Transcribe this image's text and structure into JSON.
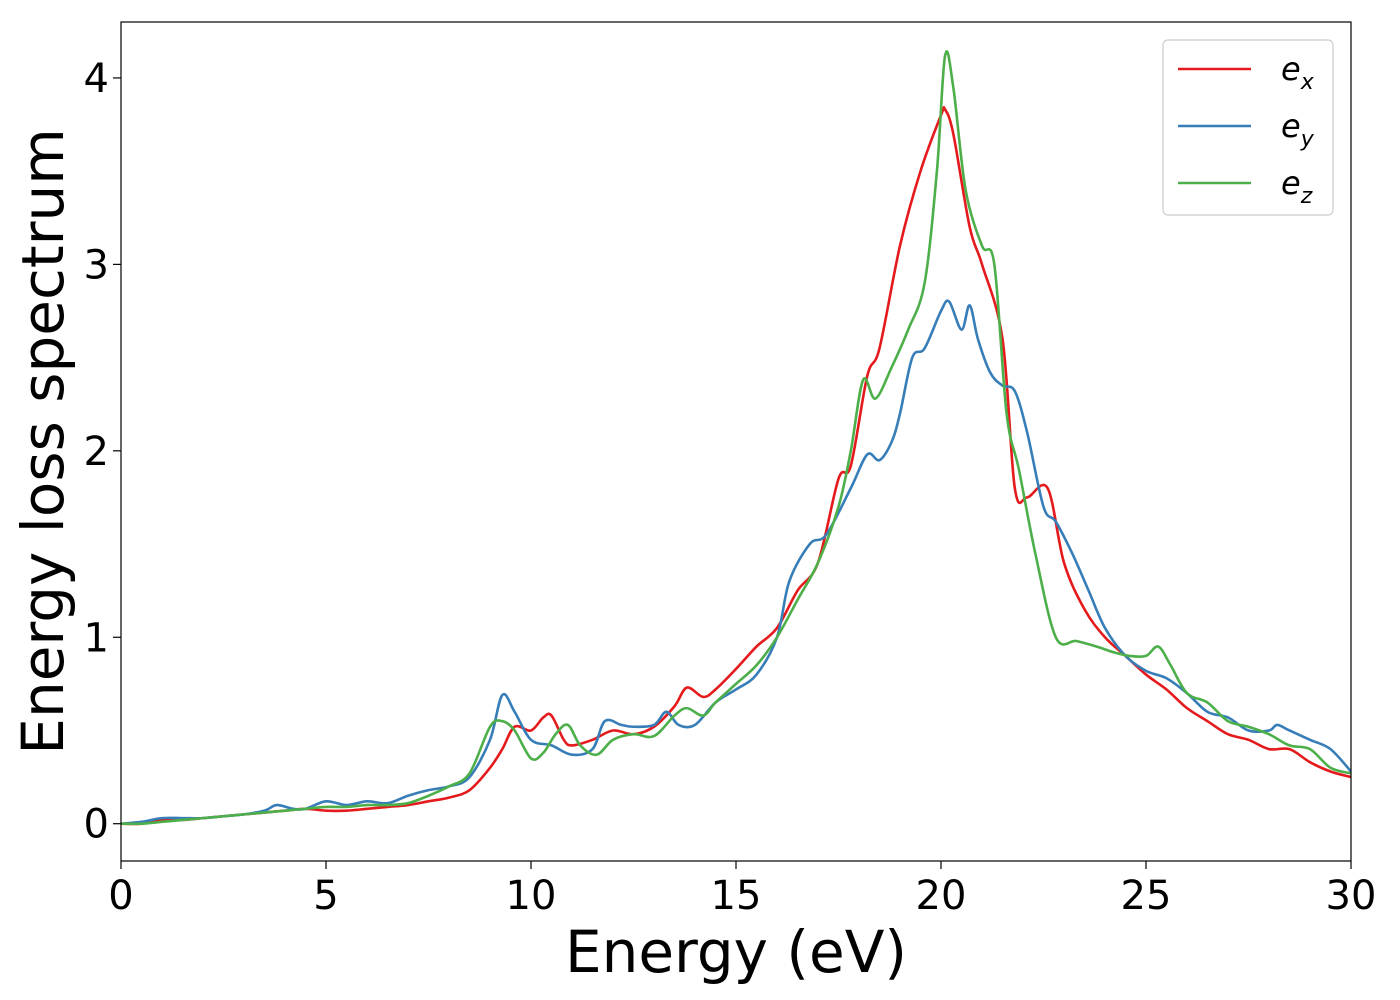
{
  "chart_data": {
    "type": "line",
    "title": "",
    "xlabel": "Energy (eV)",
    "ylabel": "Energy loss spectrum",
    "xlim": [
      0,
      30
    ],
    "ylim": [
      -0.2,
      4.3
    ],
    "xticks": [
      0,
      5,
      10,
      15,
      20,
      25,
      30
    ],
    "yticks": [
      0,
      1,
      2,
      3,
      4
    ],
    "grid": false,
    "legend_position": "top-right",
    "series": [
      {
        "name": "e_x",
        "name_base": "e",
        "name_sub": "x",
        "color": "#e41a1c",
        "x": [
          0,
          0.5,
          1,
          1.5,
          2,
          2.5,
          3,
          3.5,
          4,
          4.5,
          5,
          5.5,
          6,
          6.5,
          7,
          7.5,
          8,
          8.5,
          9,
          9.3,
          9.6,
          10,
          10.3,
          10.5,
          10.8,
          11,
          11.5,
          12,
          12.5,
          13,
          13.5,
          13.8,
          14.2,
          14.5,
          15,
          15.5,
          16,
          16.5,
          17,
          17.5,
          17.8,
          18.2,
          18.5,
          19,
          19.5,
          20,
          20.1,
          20.3,
          20.7,
          21,
          21.5,
          21.8,
          22.1,
          22.6,
          23,
          23.5,
          24,
          24.5,
          25,
          25.5,
          26,
          26.5,
          27,
          27.5,
          28,
          28.5,
          29,
          29.5,
          30
        ],
        "y": [
          0,
          0,
          0.02,
          0.02,
          0.03,
          0.04,
          0.05,
          0.06,
          0.07,
          0.08,
          0.07,
          0.07,
          0.08,
          0.09,
          0.1,
          0.12,
          0.14,
          0.18,
          0.3,
          0.4,
          0.52,
          0.5,
          0.57,
          0.58,
          0.45,
          0.42,
          0.45,
          0.5,
          0.48,
          0.52,
          0.63,
          0.73,
          0.68,
          0.72,
          0.83,
          0.95,
          1.05,
          1.25,
          1.4,
          1.85,
          1.92,
          2.4,
          2.55,
          3.1,
          3.5,
          3.8,
          3.83,
          3.7,
          3.2,
          3.0,
          2.6,
          1.8,
          1.75,
          1.8,
          1.4,
          1.15,
          1.0,
          0.9,
          0.8,
          0.72,
          0.62,
          0.55,
          0.48,
          0.45,
          0.4,
          0.4,
          0.33,
          0.28,
          0.25
        ]
      },
      {
        "name": "e_y",
        "name_base": "e",
        "name_sub": "y",
        "color": "#377eb8",
        "x": [
          0,
          0.5,
          1,
          1.5,
          2,
          2.5,
          3,
          3.5,
          3.8,
          4.2,
          4.5,
          5,
          5.5,
          6,
          6.5,
          7,
          7.5,
          8,
          8.5,
          9,
          9.3,
          9.6,
          10,
          10.5,
          11,
          11.5,
          11.8,
          12.2,
          12.5,
          13,
          13.3,
          13.6,
          14,
          14.5,
          15,
          15.5,
          16,
          16.3,
          16.8,
          17.2,
          17.8,
          18.2,
          18.5,
          18.8,
          19,
          19.3,
          19.6,
          20,
          20.2,
          20.5,
          20.7,
          20.9,
          21.2,
          21.5,
          21.8,
          22.1,
          22.5,
          22.8,
          23.2,
          23.6,
          24,
          24.5,
          25,
          25.5,
          26,
          26.5,
          27,
          27.5,
          28,
          28.2,
          28.5,
          29,
          29.5,
          30
        ],
        "y": [
          0,
          0.01,
          0.03,
          0.03,
          0.03,
          0.04,
          0.05,
          0.07,
          0.1,
          0.08,
          0.08,
          0.12,
          0.1,
          0.12,
          0.11,
          0.15,
          0.18,
          0.2,
          0.25,
          0.45,
          0.69,
          0.6,
          0.45,
          0.42,
          0.37,
          0.4,
          0.55,
          0.53,
          0.52,
          0.53,
          0.6,
          0.53,
          0.53,
          0.65,
          0.72,
          0.8,
          1.0,
          1.3,
          1.5,
          1.55,
          1.8,
          1.98,
          1.95,
          2.05,
          2.2,
          2.5,
          2.55,
          2.75,
          2.8,
          2.65,
          2.78,
          2.6,
          2.42,
          2.35,
          2.32,
          2.1,
          1.7,
          1.62,
          1.45,
          1.25,
          1.05,
          0.9,
          0.82,
          0.78,
          0.7,
          0.6,
          0.57,
          0.5,
          0.5,
          0.53,
          0.5,
          0.45,
          0.4,
          0.28
        ]
      },
      {
        "name": "e_z",
        "name_base": "e",
        "name_sub": "z",
        "color": "#4daf4a",
        "x": [
          0,
          0.5,
          1,
          1.5,
          2,
          2.5,
          3,
          3.5,
          4,
          4.5,
          5,
          5.5,
          6,
          6.5,
          7,
          7.5,
          8,
          8.5,
          9,
          9.3,
          9.6,
          10,
          10.3,
          10.6,
          10.9,
          11.2,
          11.6,
          12,
          12.5,
          13,
          13.5,
          13.8,
          14.2,
          14.5,
          15,
          15.5,
          16,
          16.5,
          17,
          17.5,
          17.8,
          18.1,
          18.4,
          18.8,
          19.2,
          19.6,
          19.9,
          20.1,
          20.3,
          20.6,
          21,
          21.3,
          21.6,
          21.9,
          22.3,
          22.8,
          23.3,
          23.8,
          24.2,
          24.6,
          25,
          25.3,
          25.6,
          26,
          26.5,
          27,
          27.5,
          28,
          28.5,
          29,
          29.5,
          30
        ],
        "y": [
          0,
          0,
          0.01,
          0.02,
          0.03,
          0.04,
          0.05,
          0.06,
          0.07,
          0.08,
          0.09,
          0.09,
          0.1,
          0.1,
          0.11,
          0.15,
          0.2,
          0.27,
          0.52,
          0.55,
          0.5,
          0.35,
          0.38,
          0.48,
          0.53,
          0.42,
          0.37,
          0.45,
          0.48,
          0.47,
          0.58,
          0.62,
          0.58,
          0.65,
          0.75,
          0.85,
          1.0,
          1.2,
          1.4,
          1.7,
          2.0,
          2.38,
          2.28,
          2.45,
          2.65,
          2.9,
          3.5,
          4.12,
          3.95,
          3.4,
          3.1,
          3.0,
          2.2,
          1.9,
          1.45,
          1.0,
          0.98,
          0.95,
          0.92,
          0.9,
          0.9,
          0.95,
          0.85,
          0.7,
          0.65,
          0.55,
          0.52,
          0.48,
          0.42,
          0.4,
          0.3,
          0.27
        ]
      }
    ]
  }
}
